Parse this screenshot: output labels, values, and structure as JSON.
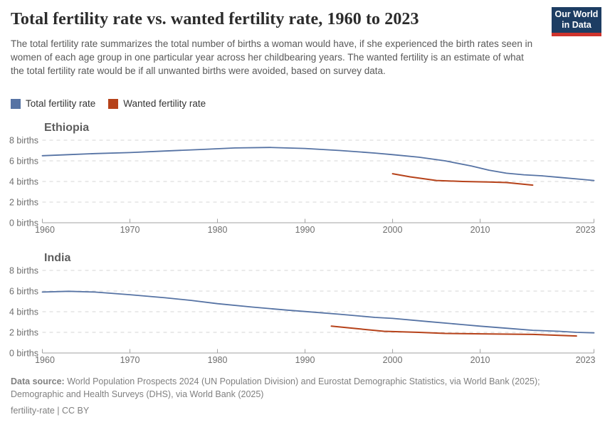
{
  "header": {
    "title": "Total fertility rate vs. wanted fertility rate, 1960 to 2023",
    "subtitle": "The total fertility rate summarizes the total number of births a woman would have, if she experienced the birth rates seen in women of each age group in one particular year across her childbearing years. The wanted fertility is an estimate of what the total fertility rate would be if all unwanted births were avoided, based on survey data.",
    "logo": {
      "line1": "Our World",
      "line2": "in Data"
    }
  },
  "legend": {
    "items": [
      {
        "label": "Total fertility rate",
        "color": "#5673a4"
      },
      {
        "label": "Wanted fertility rate",
        "color": "#b6421a"
      }
    ]
  },
  "axis": {
    "x_min": 1960,
    "x_max": 2023,
    "x_ticks": [
      1960,
      1970,
      1980,
      1990,
      2000,
      2010,
      2023
    ],
    "y_ticks": [
      0,
      2,
      4,
      6,
      8
    ],
    "y_suffix": " births",
    "ylim": [
      0,
      8
    ],
    "grid": "dashed",
    "legend_position": "top-left"
  },
  "chart_data": [
    {
      "type": "line",
      "title": "Ethiopia",
      "xlabel": "",
      "ylabel": "births",
      "ylim": [
        0,
        8
      ],
      "series": [
        {
          "name": "Total fertility rate",
          "color": "#5673a4",
          "points": [
            [
              1960,
              6.5
            ],
            [
              1963,
              6.6
            ],
            [
              1966,
              6.7
            ],
            [
              1970,
              6.8
            ],
            [
              1974,
              6.95
            ],
            [
              1978,
              7.1
            ],
            [
              1982,
              7.25
            ],
            [
              1986,
              7.3
            ],
            [
              1990,
              7.2
            ],
            [
              1994,
              7.0
            ],
            [
              1998,
              6.75
            ],
            [
              2000,
              6.6
            ],
            [
              2003,
              6.35
            ],
            [
              2006,
              6.0
            ],
            [
              2009,
              5.5
            ],
            [
              2011,
              5.1
            ],
            [
              2013,
              4.8
            ],
            [
              2015,
              4.65
            ],
            [
              2017,
              4.55
            ],
            [
              2019,
              4.4
            ],
            [
              2021,
              4.25
            ],
            [
              2023,
              4.1
            ]
          ]
        },
        {
          "name": "Wanted fertility rate",
          "color": "#b6421a",
          "points": [
            [
              2000,
              4.75
            ],
            [
              2002,
              4.45
            ],
            [
              2005,
              4.1
            ],
            [
              2008,
              4.0
            ],
            [
              2011,
              3.95
            ],
            [
              2013,
              3.9
            ],
            [
              2016,
              3.65
            ]
          ]
        }
      ]
    },
    {
      "type": "line",
      "title": "India",
      "xlabel": "",
      "ylabel": "births",
      "ylim": [
        0,
        8
      ],
      "series": [
        {
          "name": "Total fertility rate",
          "color": "#5673a4",
          "points": [
            [
              1960,
              5.9
            ],
            [
              1963,
              5.98
            ],
            [
              1966,
              5.9
            ],
            [
              1970,
              5.65
            ],
            [
              1974,
              5.35
            ],
            [
              1977,
              5.1
            ],
            [
              1980,
              4.78
            ],
            [
              1984,
              4.45
            ],
            [
              1988,
              4.15
            ],
            [
              1990,
              4.02
            ],
            [
              1994,
              3.75
            ],
            [
              1998,
              3.45
            ],
            [
              2000,
              3.35
            ],
            [
              2004,
              3.05
            ],
            [
              2008,
              2.75
            ],
            [
              2010,
              2.6
            ],
            [
              2013,
              2.4
            ],
            [
              2016,
              2.2
            ],
            [
              2019,
              2.1
            ],
            [
              2021,
              2.0
            ],
            [
              2023,
              1.95
            ]
          ]
        },
        {
          "name": "Wanted fertility rate",
          "color": "#b6421a",
          "points": [
            [
              1993,
              2.6
            ],
            [
              1996,
              2.35
            ],
            [
              1999,
              2.1
            ],
            [
              2003,
              2.0
            ],
            [
              2006,
              1.9
            ],
            [
              2011,
              1.85
            ],
            [
              2016,
              1.8
            ],
            [
              2021,
              1.65
            ]
          ]
        }
      ]
    }
  ],
  "footer": {
    "source_label": "Data source:",
    "source_text": " World Population Prospects 2024 (UN Population Division) and Eurostat Demographic Statistics, via World Bank (2025); Demographic and Health Surveys (DHS), via World Bank (2025)",
    "note_left": "fertility-rate",
    "note_sep": " | ",
    "note_license": "CC BY"
  }
}
